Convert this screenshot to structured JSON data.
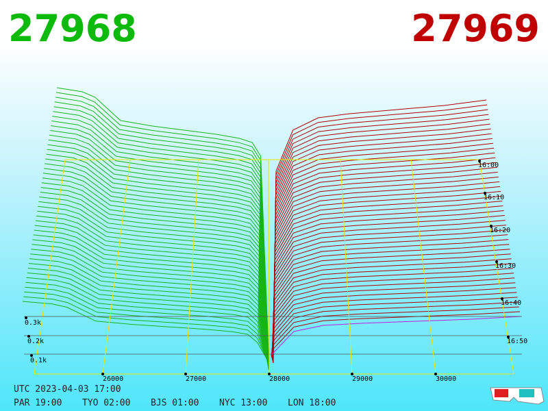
{
  "header": {
    "bid": "27968",
    "ask": "27969"
  },
  "price_ticks": [
    "26000",
    "27000",
    "28000",
    "29000",
    "30000"
  ],
  "time_ticks": [
    "16:00",
    "16:10",
    "16:20",
    "16:30",
    "16:40",
    "16:50"
  ],
  "depth_ticks": [
    "0.3k",
    "0.2k",
    "0.1k"
  ],
  "footer": {
    "utc": "UTC 2023-04-03 17:00",
    "zones": [
      "PAR 19:00",
      "TYO 02:00",
      "BJS 01:00",
      "NYC 13:00",
      "LON 18:00"
    ]
  }
}
